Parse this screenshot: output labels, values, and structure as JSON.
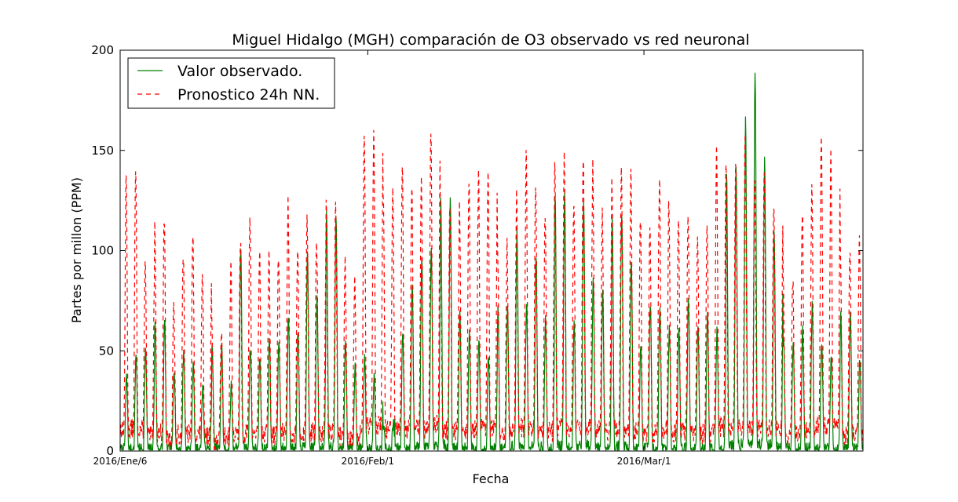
{
  "chart_data": {
    "type": "line",
    "title": "Miguel Hidalgo (MGH) comparación de O3 observado vs red neuronal",
    "xlabel": "Fecha",
    "ylabel": "Partes por millon (PPM)",
    "ylim": [
      0,
      200
    ],
    "yticks": [
      0,
      50,
      100,
      150,
      200
    ],
    "xlim": [
      "2016-01-06",
      "2016-03-24"
    ],
    "xticks": [
      {
        "date": "2016-01-06",
        "label": "2016/Ene/6"
      },
      {
        "date": "2016-02-01",
        "label": "2016/Feb/1"
      },
      {
        "date": "2016-03-01",
        "label": "2016/Mar/1"
      }
    ],
    "grid": false,
    "legend_position": "top-left",
    "series": [
      {
        "name": "Valor observado.",
        "color": "#008000",
        "style": "solid",
        "daily_peaks": [
          37,
          49,
          50,
          65,
          42,
          50,
          44,
          33,
          52,
          33,
          102,
          52,
          47,
          56,
          69,
          60,
          97,
          78,
          119,
          55,
          43,
          47,
          38,
          14,
          60,
          84,
          97,
          100,
          126,
          68,
          60,
          57,
          48,
          72,
          109,
          75,
          98,
          65,
          129,
          65,
          123,
          86,
          80,
          118,
          96,
          55,
          75,
          70,
          62,
          75,
          62,
          69,
          60,
          141,
          165,
          190,
          145,
          109,
          55,
          60,
          74,
          55,
          48,
          69,
          47
        ]
      },
      {
        "name": "Pronostico 24h NN.",
        "color": "#ff0000",
        "style": "dashed",
        "daily_peaks": [
          137,
          140,
          95,
          118,
          73,
          100,
          108,
          88,
          62,
          92,
          105,
          116,
          100,
          98,
          124,
          102,
          118,
          105,
          123,
          93,
          86,
          158,
          162,
          130,
          141,
          134,
          133,
          163,
          125,
          120,
          135,
          138,
          136,
          102,
          126,
          147,
          135,
          120,
          148,
          125,
          149,
          143,
          120,
          138,
          137,
          118,
          110,
          136,
          118,
          118,
          105,
          113,
          148,
          145,
          155,
          137,
          140,
          126,
          86,
          120,
          136,
          158,
          146,
          100,
          104
        ]
      }
    ]
  }
}
